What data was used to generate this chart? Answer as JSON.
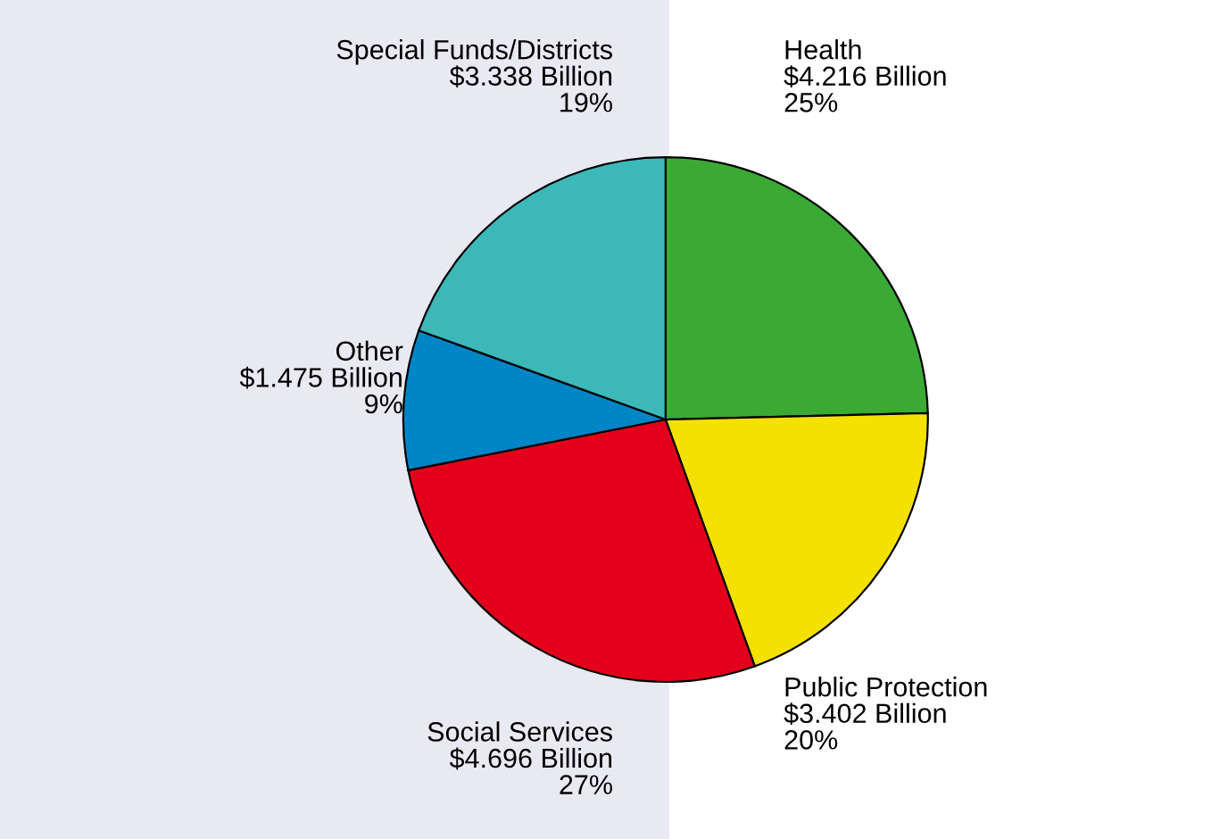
{
  "chart_data": {
    "type": "pie",
    "categories": [
      "Health",
      "Public Protection",
      "Social Services",
      "Other",
      "Special Funds/Districts"
    ],
    "values": [
      4.216,
      3.402,
      4.696,
      1.475,
      3.338
    ],
    "colors": [
      "#3aaa35",
      "#f5e100",
      "#e2001a",
      "#0085c7",
      "#3db8b9"
    ],
    "value_labels": [
      "$4.216 Billion\n25%",
      "$3.402 Billion\n20%",
      "$4.696 Billion\n27%",
      "$1.475 Billion\n9%",
      "$3.338 Billion\n19%"
    ],
    "legend": false
  }
}
